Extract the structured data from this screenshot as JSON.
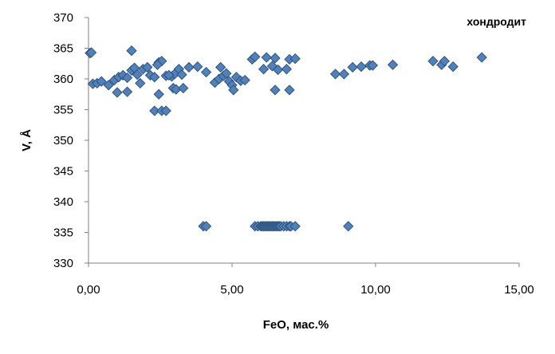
{
  "chart_data": {
    "type": "scatter",
    "title": "хондродит",
    "xlabel": "FeO, мас.%",
    "ylabel": "V, Å",
    "xlim": [
      0,
      15
    ],
    "ylim": [
      330,
      370
    ],
    "x_ticks": [
      "0,00",
      "5,00",
      "10,00",
      "15,00"
    ],
    "y_ticks": [
      "330",
      "335",
      "340",
      "345",
      "350",
      "355",
      "360",
      "365",
      "370"
    ],
    "grid": false,
    "legend": "none",
    "marker_color": "#4f81bd",
    "points": [
      [
        0.05,
        364.2
      ],
      [
        0.1,
        364.3
      ],
      [
        0.15,
        359.2
      ],
      [
        0.3,
        359.3
      ],
      [
        0.45,
        359.6
      ],
      [
        0.7,
        359.0
      ],
      [
        0.9,
        359.8
      ],
      [
        1.05,
        360.3
      ],
      [
        1.2,
        360.6
      ],
      [
        1.35,
        360.2
      ],
      [
        1.5,
        361.4
      ],
      [
        1.6,
        361.8
      ],
      [
        1.7,
        360.7
      ],
      [
        1.8,
        359.3
      ],
      [
        1.9,
        361.6
      ],
      [
        2.05,
        361.9
      ],
      [
        2.15,
        360.6
      ],
      [
        2.3,
        360.3
      ],
      [
        2.45,
        362.7
      ],
      [
        2.55,
        362.9
      ],
      [
        2.7,
        360.5
      ],
      [
        2.9,
        360.4
      ],
      [
        3.0,
        360.8
      ],
      [
        3.15,
        361.6
      ],
      [
        3.25,
        360.7
      ],
      [
        3.5,
        361.9
      ],
      [
        1.0,
        357.8
      ],
      [
        1.35,
        357.9
      ],
      [
        2.45,
        357.5
      ],
      [
        2.3,
        354.8
      ],
      [
        2.55,
        354.8
      ],
      [
        2.7,
        354.8
      ],
      [
        1.5,
        364.6
      ],
      [
        2.4,
        362.3
      ],
      [
        2.8,
        360.6
      ],
      [
        2.95,
        358.5
      ],
      [
        3.05,
        358.3
      ],
      [
        3.3,
        358.5
      ],
      [
        3.8,
        362.0
      ],
      [
        4.1,
        361.1
      ],
      [
        4.4,
        359.4
      ],
      [
        4.55,
        360.0
      ],
      [
        4.6,
        361.9
      ],
      [
        4.7,
        360.5
      ],
      [
        4.8,
        360.9
      ],
      [
        4.9,
        359.6
      ],
      [
        5.0,
        359.0
      ],
      [
        5.05,
        358.2
      ],
      [
        5.15,
        360.3
      ],
      [
        5.3,
        359.7
      ],
      [
        5.45,
        359.8
      ],
      [
        5.7,
        363.2
      ],
      [
        5.8,
        363.6
      ],
      [
        6.2,
        363.5
      ],
      [
        6.5,
        363.4
      ],
      [
        6.1,
        361.6
      ],
      [
        6.4,
        362.1
      ],
      [
        6.6,
        361.5
      ],
      [
        6.5,
        358.2
      ],
      [
        6.9,
        361.6
      ],
      [
        7.0,
        363.2
      ],
      [
        7.2,
        363.3
      ],
      [
        7.0,
        358.2
      ],
      [
        8.6,
        360.8
      ],
      [
        8.9,
        360.8
      ],
      [
        9.2,
        361.9
      ],
      [
        9.5,
        362.0
      ],
      [
        9.8,
        362.2
      ],
      [
        9.9,
        362.2
      ],
      [
        10.6,
        362.3
      ],
      [
        12.0,
        362.9
      ],
      [
        12.3,
        362.3
      ],
      [
        12.4,
        362.9
      ],
      [
        12.7,
        362.0
      ],
      [
        13.7,
        363.5
      ],
      [
        4.0,
        336.0
      ],
      [
        4.1,
        336.0
      ],
      [
        5.8,
        336.0
      ],
      [
        5.9,
        336.0
      ],
      [
        6.0,
        336.0
      ],
      [
        6.05,
        336.0
      ],
      [
        6.1,
        336.0
      ],
      [
        6.15,
        336.0
      ],
      [
        6.2,
        336.0
      ],
      [
        6.25,
        336.0
      ],
      [
        6.3,
        336.0
      ],
      [
        6.35,
        336.0
      ],
      [
        6.4,
        336.0
      ],
      [
        6.45,
        336.0
      ],
      [
        6.5,
        336.0
      ],
      [
        6.55,
        336.0
      ],
      [
        6.6,
        336.0
      ],
      [
        6.65,
        336.0
      ],
      [
        6.7,
        336.0
      ],
      [
        6.8,
        336.0
      ],
      [
        6.9,
        336.0
      ],
      [
        7.0,
        336.0
      ],
      [
        7.05,
        336.0
      ],
      [
        7.2,
        336.0
      ],
      [
        9.05,
        336.0
      ]
    ]
  }
}
